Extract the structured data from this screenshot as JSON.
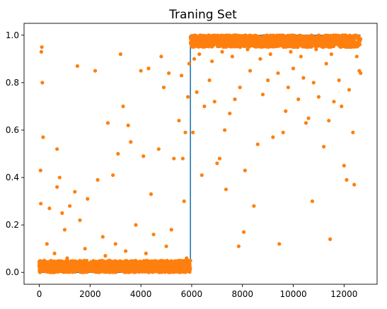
{
  "chart_data": {
    "type": "scatter",
    "title": "Traning Set",
    "xlabel": "",
    "ylabel": "",
    "xlim": [
      -600,
      13300
    ],
    "ylim": [
      -0.05,
      1.05
    ],
    "xticks": [
      0,
      2000,
      4000,
      6000,
      8000,
      10000,
      12000
    ],
    "xtick_labels": [
      "0",
      "2000",
      "4000",
      "6000",
      "8000",
      "10000",
      "12000"
    ],
    "yticks": [
      0.0,
      0.2,
      0.4,
      0.6,
      0.8,
      1.0
    ],
    "ytick_labels": [
      "0.0",
      "0.2",
      "0.4",
      "0.6",
      "0.8",
      "1.0"
    ],
    "grid": false,
    "series": [
      {
        "type": "line",
        "color": "#1f77b4",
        "x": [
          0,
          5950,
          5950,
          12650
        ],
        "y": [
          0,
          0,
          1,
          1
        ]
      },
      {
        "type": "scatter",
        "color": "#ff7f0e",
        "x": [
          50,
          80,
          100,
          120,
          150,
          60,
          700,
          800,
          1500,
          2200,
          3200,
          3600,
          4000,
          4300,
          4800,
          5100,
          5600,
          400,
          700,
          900,
          1200,
          1400,
          1900,
          2300,
          2700,
          2900,
          3100,
          3300,
          3500,
          4100,
          4400,
          4700,
          4900,
          5300,
          5500,
          5650,
          5750,
          5850,
          5900,
          300,
          1000,
          1600,
          2500,
          3000,
          3800,
          4500,
          5200,
          5700,
          200,
          600,
          1100,
          1800,
          2600,
          3400,
          4200,
          5000,
          5800,
          6050,
          6200,
          6500,
          6700,
          6900,
          7100,
          7300,
          7500,
          7700,
          7900,
          8100,
          8300,
          8600,
          8800,
          9000,
          9200,
          9400,
          9600,
          9800,
          10000,
          10200,
          10400,
          10600,
          10800,
          11000,
          11200,
          11400,
          11600,
          11800,
          12000,
          12200,
          12400,
          12600,
          6400,
          7000,
          7350,
          7850,
          8050,
          8450,
          9450,
          9700,
          10500,
          10750,
          11300,
          11450,
          11900,
          12100,
          12350,
          6100,
          6300,
          6800,
          7200,
          7600,
          8200,
          8700,
          9100,
          9900,
          10300,
          10900,
          11500,
          12500,
          12650
        ],
        "y": [
          0.43,
          0.93,
          0.95,
          0.8,
          0.57,
          0.29,
          0.52,
          0.4,
          0.87,
          0.85,
          0.92,
          0.55,
          0.85,
          0.86,
          0.91,
          0.84,
          0.83,
          0.27,
          0.36,
          0.25,
          0.28,
          0.34,
          0.31,
          0.39,
          0.63,
          0.41,
          0.5,
          0.7,
          0.62,
          0.49,
          0.33,
          0.52,
          0.78,
          0.48,
          0.64,
          0.48,
          0.59,
          0.74,
          0.88,
          0.12,
          0.18,
          0.22,
          0.15,
          0.12,
          0.2,
          0.16,
          0.18,
          0.3,
          0.05,
          0.08,
          0.06,
          0.1,
          0.07,
          0.09,
          0.08,
          0.11,
          0.06,
          0.59,
          0.76,
          0.7,
          0.81,
          0.72,
          0.48,
          0.6,
          0.67,
          0.73,
          0.78,
          0.43,
          0.85,
          0.54,
          0.75,
          0.81,
          0.57,
          0.84,
          0.59,
          0.78,
          0.86,
          0.73,
          0.82,
          0.65,
          0.8,
          0.74,
          0.53,
          0.64,
          0.72,
          0.81,
          0.45,
          0.77,
          0.37,
          0.85,
          0.41,
          0.46,
          0.35,
          0.11,
          0.17,
          0.28,
          0.12,
          0.68,
          0.63,
          0.3,
          0.88,
          0.14,
          0.7,
          0.39,
          0.59,
          0.9,
          0.92,
          0.89,
          0.93,
          0.91,
          0.94,
          0.9,
          0.92,
          0.93,
          0.91,
          0.94,
          0.92,
          0.91,
          0.84
        ],
        "dense_bands": [
          {
            "x": [
              0,
              5950
            ],
            "y": [
              0.0,
              0.05
            ]
          },
          {
            "x": [
              5950,
              12650
            ],
            "y": [
              0.95,
              1.0
            ]
          }
        ]
      }
    ]
  }
}
